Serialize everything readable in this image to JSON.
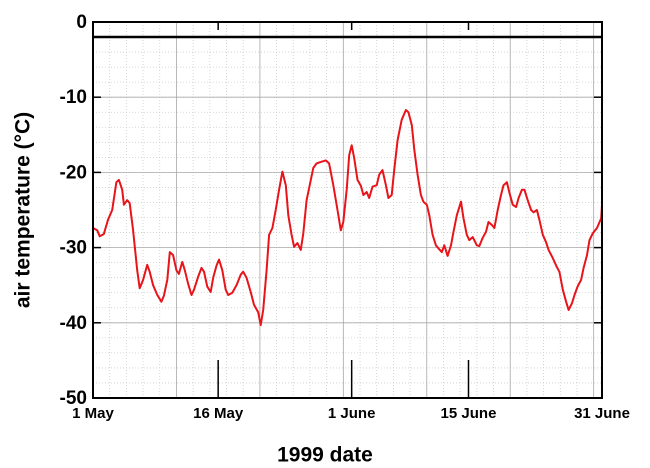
{
  "chart_data": {
    "type": "line",
    "xlabel": "1999 date",
    "ylabel": "air temperature (°C)",
    "xlim": [
      0,
      61
    ],
    "ylim": [
      -50,
      0
    ],
    "xticks": [
      {
        "value": 0,
        "label": "1 May"
      },
      {
        "value": 15,
        "label": "16 May"
      },
      {
        "value": 31,
        "label": "1 June"
      },
      {
        "value": 45,
        "label": "15 June"
      },
      {
        "value": 61,
        "label": "31 June"
      }
    ],
    "yticks": [
      0,
      -10,
      -20,
      -30,
      -40,
      -50
    ],
    "xgrid": [
      10,
      20,
      30,
      40,
      50,
      60
    ],
    "minor_grid_step": {
      "x": 2,
      "y": 2
    },
    "grid": true,
    "hline": -2,
    "series": [
      {
        "color": "#e8141a",
        "x": [
          0,
          0.5,
          0.8,
          1.3,
          1.8,
          2.3,
          2.8,
          3.1,
          3.5,
          3.7,
          4.1,
          4.4,
          4.8,
          5.3,
          5.6,
          6.0,
          6.5,
          6.8,
          7.2,
          7.7,
          8.2,
          8.5,
          8.9,
          9.2,
          9.6,
          10.0,
          10.3,
          10.7,
          11.0,
          11.4,
          11.8,
          12.1,
          12.6,
          13.0,
          13.3,
          13.7,
          14.1,
          14.4,
          14.8,
          15.1,
          15.5,
          15.9,
          16.2,
          16.7,
          17.2,
          17.7,
          18.0,
          18.4,
          18.9,
          19.3,
          19.8,
          20.1,
          20.4,
          20.8,
          21.1,
          21.5,
          21.9,
          22.3,
          22.7,
          23.1,
          23.4,
          23.8,
          24.1,
          24.5,
          24.9,
          25.2,
          25.6,
          26.1,
          26.4,
          26.8,
          27.3,
          27.9,
          28.3,
          28.8,
          29.3,
          29.7,
          30.0,
          30.4,
          30.7,
          31.0,
          31.3,
          31.7,
          32.1,
          32.4,
          32.8,
          33.1,
          33.5,
          34.0,
          34.3,
          34.7,
          35.1,
          35.4,
          35.8,
          36.1,
          36.5,
          37.0,
          37.5,
          37.8,
          38.2,
          38.5,
          38.9,
          39.3,
          39.6,
          40.0,
          40.3,
          40.7,
          41.1,
          41.4,
          41.8,
          42.1,
          42.5,
          42.9,
          43.2,
          43.6,
          44.1,
          44.4,
          44.8,
          45.1,
          45.5,
          46.0,
          46.3,
          46.7,
          47.1,
          47.4,
          47.8,
          48.1,
          48.5,
          48.9,
          49.2,
          49.6,
          49.9,
          50.3,
          50.7,
          51.0,
          51.4,
          51.7,
          52.1,
          52.5,
          52.8,
          53.2,
          53.5,
          53.9,
          54.3,
          54.6,
          55.1,
          55.6,
          55.9,
          56.3,
          56.7,
          57.0,
          57.4,
          57.7,
          58.1,
          58.5,
          58.8,
          59.2,
          59.5,
          59.9,
          60.4,
          60.9,
          61
        ],
        "values": [
          -27.4,
          -27.7,
          -28.5,
          -28.2,
          -26.3,
          -25.0,
          -21.3,
          -21.0,
          -22.3,
          -24.3,
          -23.7,
          -24.1,
          -27.7,
          -33.0,
          -35.4,
          -34.3,
          -32.3,
          -33.2,
          -35.0,
          -36.3,
          -37.2,
          -36.4,
          -34.3,
          -30.6,
          -31.0,
          -33.0,
          -33.5,
          -31.9,
          -33.0,
          -34.8,
          -36.3,
          -35.6,
          -33.9,
          -32.7,
          -33.2,
          -35.2,
          -35.9,
          -34.0,
          -32.4,
          -31.6,
          -33.0,
          -35.6,
          -36.3,
          -36.0,
          -35.0,
          -33.6,
          -33.2,
          -34.0,
          -35.9,
          -37.6,
          -38.6,
          -40.3,
          -38.3,
          -33.0,
          -28.3,
          -27.4,
          -25.0,
          -22.3,
          -19.9,
          -21.7,
          -25.7,
          -28.3,
          -29.9,
          -29.4,
          -30.3,
          -28.1,
          -23.7,
          -21.0,
          -19.4,
          -18.8,
          -18.6,
          -18.4,
          -18.8,
          -21.7,
          -25.0,
          -27.7,
          -26.6,
          -22.3,
          -17.7,
          -16.4,
          -18.1,
          -21.0,
          -21.8,
          -23.0,
          -22.6,
          -23.4,
          -21.9,
          -21.7,
          -20.3,
          -19.7,
          -21.7,
          -23.4,
          -23.0,
          -19.7,
          -15.7,
          -13.0,
          -11.7,
          -12.0,
          -13.7,
          -17.0,
          -20.3,
          -23.0,
          -23.9,
          -24.3,
          -25.7,
          -28.3,
          -29.7,
          -30.1,
          -30.6,
          -29.7,
          -31.1,
          -29.7,
          -27.9,
          -25.7,
          -23.9,
          -26.1,
          -28.3,
          -29.0,
          -28.6,
          -29.7,
          -29.8,
          -28.7,
          -27.9,
          -26.6,
          -27.0,
          -27.4,
          -25.0,
          -23.0,
          -21.7,
          -21.3,
          -22.7,
          -24.3,
          -24.6,
          -23.4,
          -22.3,
          -22.3,
          -23.7,
          -25.0,
          -25.3,
          -25.0,
          -26.3,
          -28.3,
          -29.3,
          -30.3,
          -31.4,
          -32.6,
          -33.2,
          -35.6,
          -37.2,
          -38.3,
          -37.4,
          -36.3,
          -35.1,
          -34.3,
          -32.7,
          -31.0,
          -29.0,
          -28.1,
          -27.4,
          -26.1,
          -24.3
        ]
      }
    ]
  }
}
